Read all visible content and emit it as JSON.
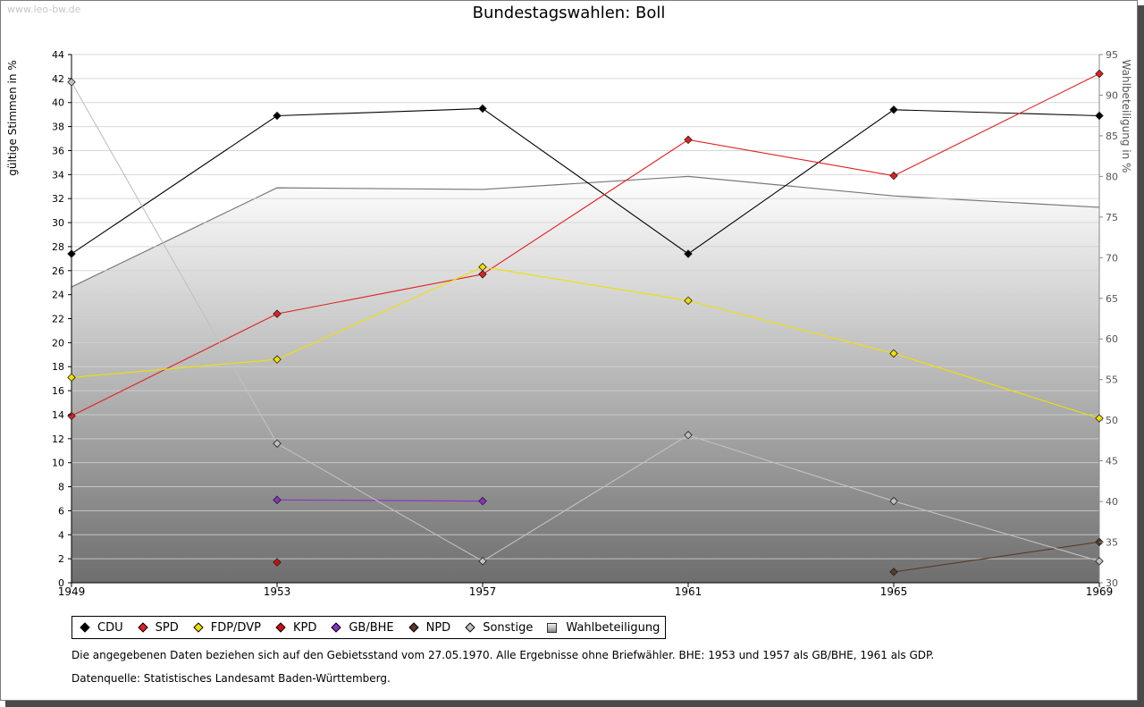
{
  "watermark": "www.leo-bw.de",
  "chart_data": {
    "type": "line",
    "title": "Bundestagswahlen: Boll",
    "xlabel": "",
    "ylabel": "gültige Stimmen in %",
    "y2label": "Wahlbeteiligung in %",
    "x": [
      1949,
      1953,
      1957,
      1961,
      1965,
      1969
    ],
    "ylim": [
      0,
      44
    ],
    "yticks": [
      0,
      2,
      4,
      6,
      8,
      10,
      12,
      14,
      16,
      18,
      20,
      22,
      24,
      26,
      28,
      30,
      32,
      34,
      36,
      38,
      40,
      42,
      44
    ],
    "y2lim": [
      30,
      95
    ],
    "y2ticks": [
      30,
      35,
      40,
      45,
      50,
      55,
      60,
      65,
      70,
      75,
      80,
      85,
      90,
      95
    ],
    "series": [
      {
        "name": "CDU",
        "color": "#000000",
        "values": [
          27.4,
          38.9,
          39.5,
          27.4,
          39.4,
          38.9
        ]
      },
      {
        "name": "SPD",
        "color": "#e02020",
        "values": [
          13.9,
          22.4,
          25.7,
          36.9,
          33.9,
          42.4
        ]
      },
      {
        "name": "FDP/DVP",
        "color": "#f0e000",
        "values": [
          17.1,
          18.6,
          26.3,
          23.5,
          19.1,
          13.7
        ]
      },
      {
        "name": "KPD",
        "color": "#cc1010",
        "values": [
          null,
          1.7,
          null,
          null,
          null,
          null
        ]
      },
      {
        "name": "GB/BHE",
        "color": "#8a30c8",
        "values": [
          null,
          6.9,
          6.8,
          null,
          null,
          null
        ]
      },
      {
        "name": "NPD",
        "color": "#5a3a28",
        "values": [
          null,
          null,
          null,
          null,
          0.9,
          3.4
        ]
      },
      {
        "name": "Sonstige",
        "color": "#c0c0c0",
        "values": [
          41.7,
          11.6,
          1.8,
          12.3,
          6.8,
          1.8
        ]
      }
    ],
    "turnout": {
      "name": "Wahlbeteiligung",
      "color": "#777777",
      "axis": "right",
      "values": [
        66.4,
        78.6,
        78.4,
        80.0,
        77.6,
        76.2
      ]
    },
    "legend_position": "bottom-left"
  },
  "notes": {
    "line1": "Die angegebenen Daten beziehen sich auf den Gebietsstand vom 27.05.1970. Alle Ergebnisse ohne Briefwähler. BHE: 1953 und 1957 als GB/BHE, 1961 als GDP.",
    "line2": "Datenquelle: Statistisches Landesamt Baden-Württemberg."
  }
}
